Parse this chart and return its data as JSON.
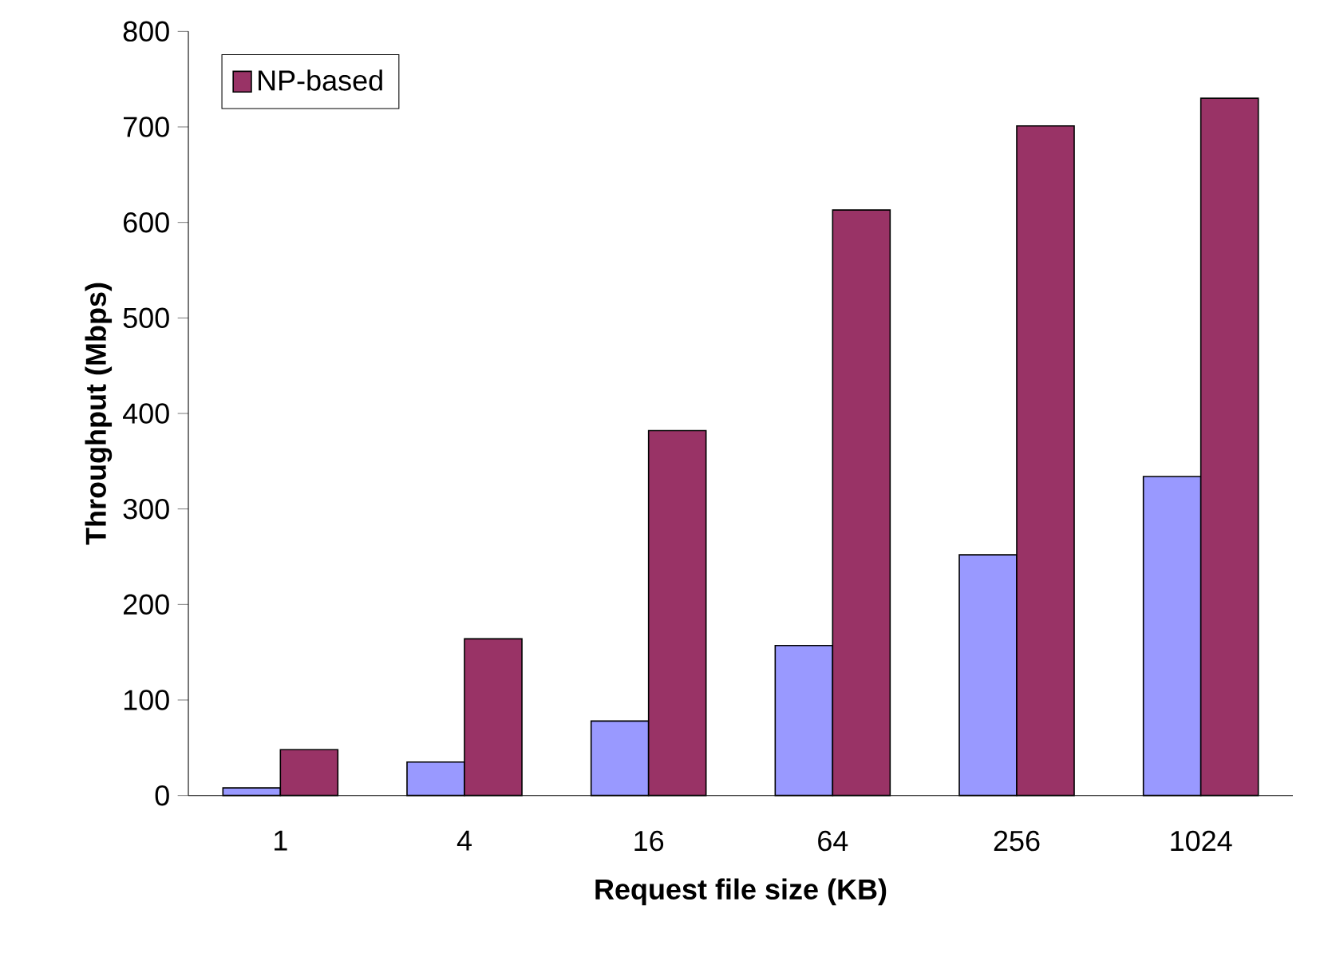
{
  "chart_data": {
    "type": "bar",
    "xlabel": "Request file size (KB)",
    "ylabel": "Throughput (Mbps)",
    "categories": [
      "1",
      "4",
      "16",
      "64",
      "256",
      "1024"
    ],
    "series": [
      {
        "color": "#9999ff",
        "values": [
          8,
          35,
          78,
          157,
          252,
          334
        ]
      },
      {
        "name": "NP-based",
        "color": "#993366",
        "values": [
          48,
          164,
          382,
          613,
          701,
          730
        ]
      }
    ],
    "ylim": [
      0,
      800
    ],
    "yticks": [
      0,
      100,
      200,
      300,
      400,
      500,
      600,
      700,
      800
    ],
    "grid": false,
    "legend": "top left"
  }
}
